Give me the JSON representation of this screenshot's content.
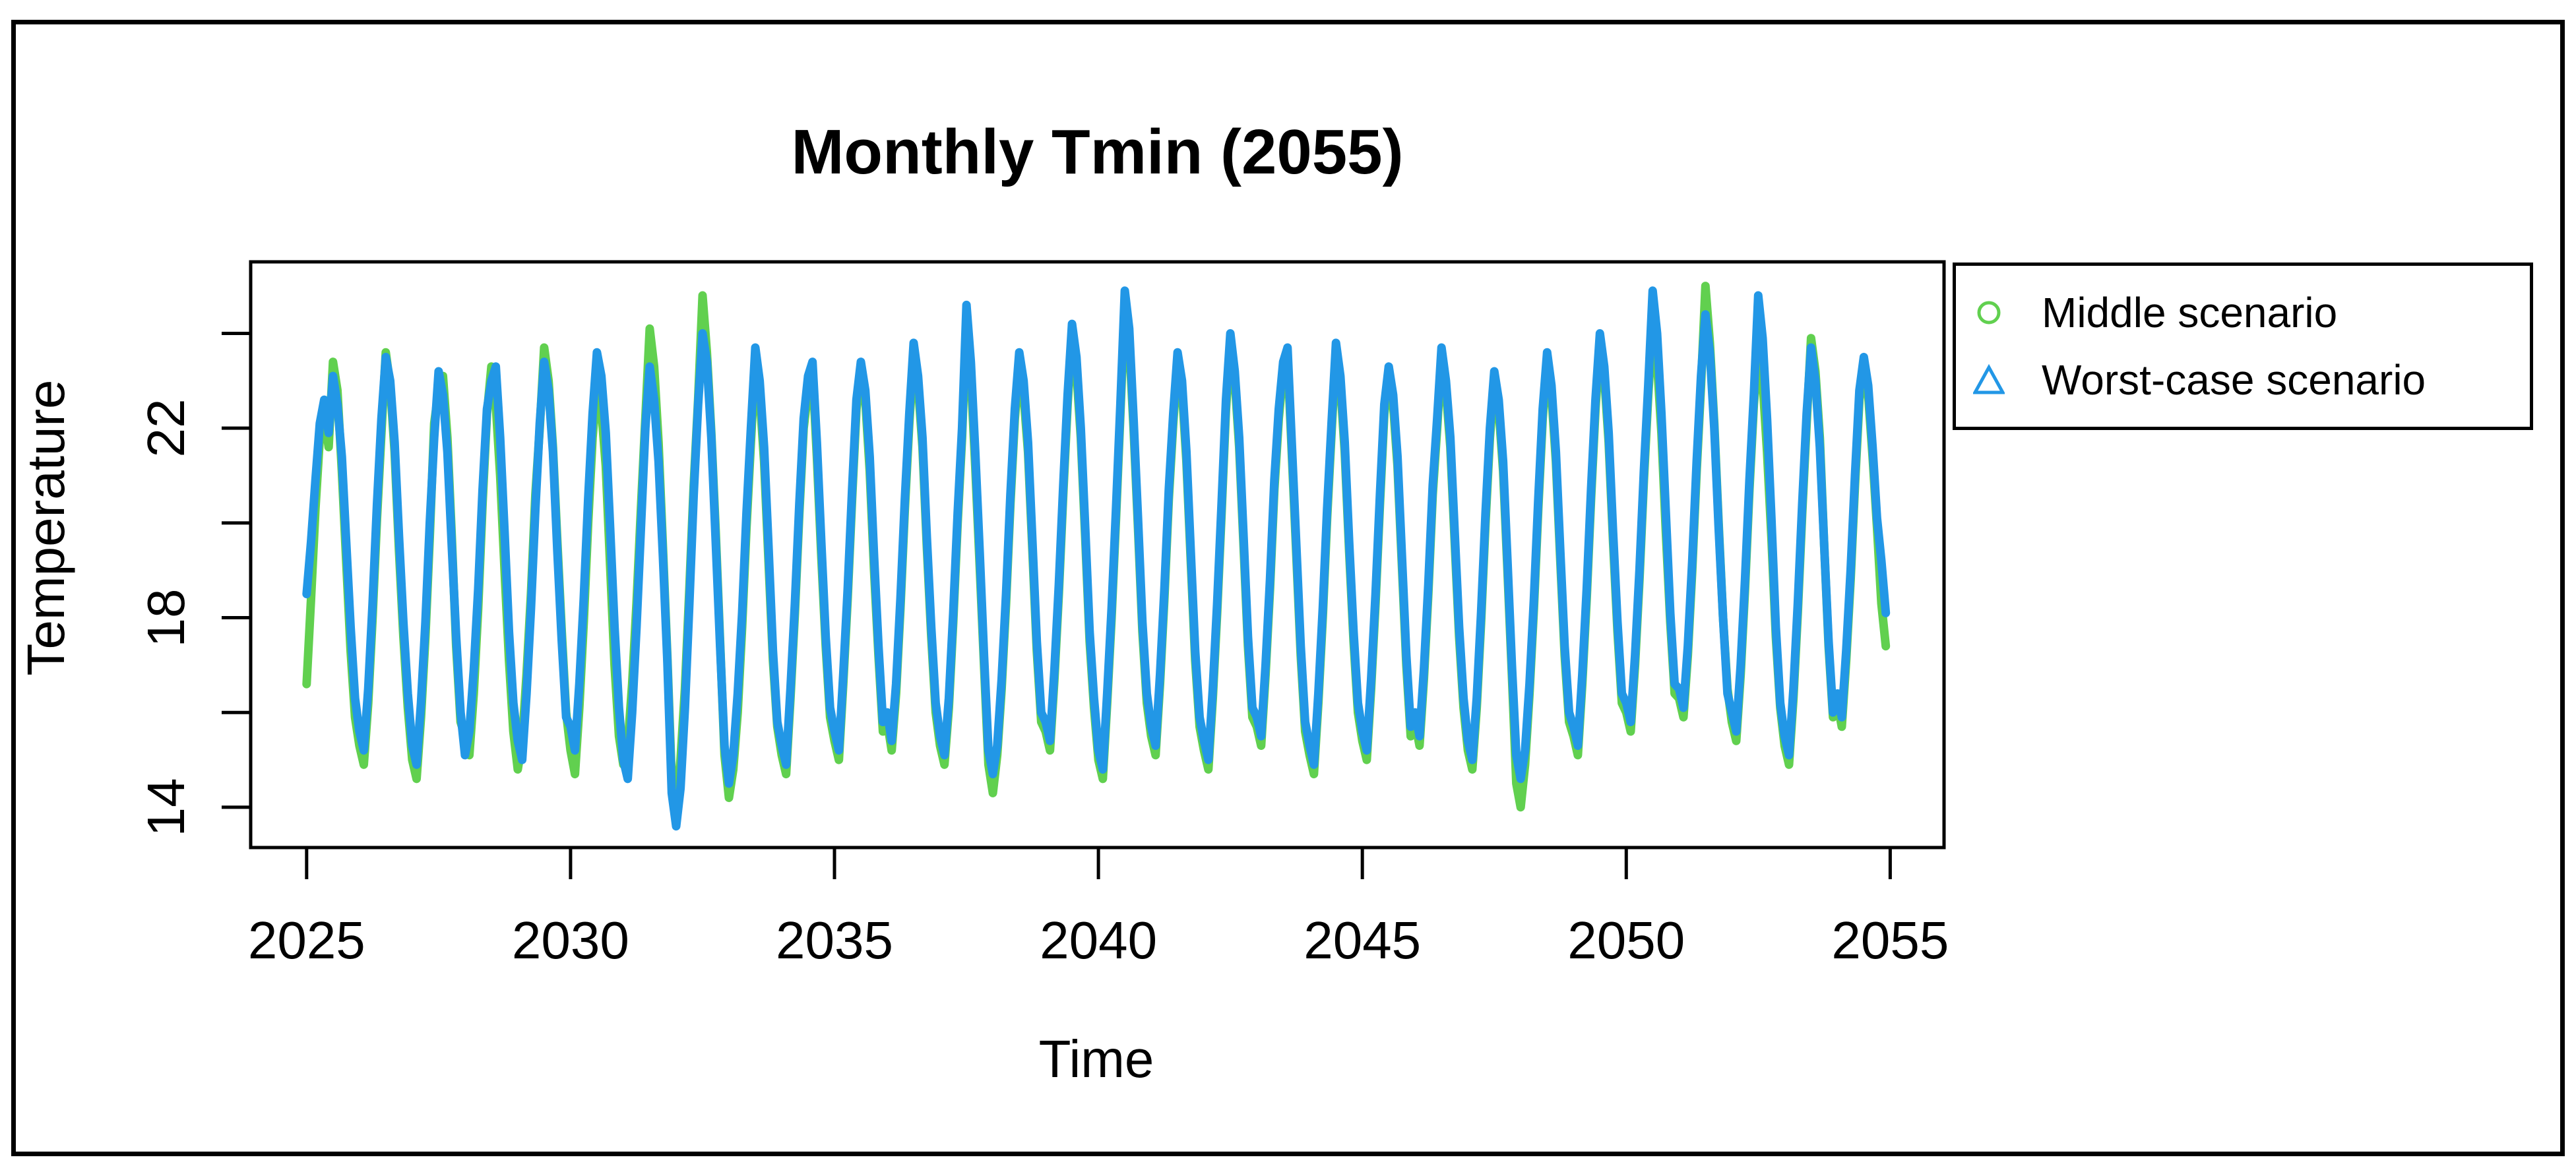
{
  "figure": {
    "background": "#ffffff",
    "border_color": "#000000",
    "axis_color": "#000000",
    "text_color": "#000000"
  },
  "chart_data": {
    "type": "line",
    "title": "Monthly Tmin (2055)",
    "xlabel": "Time",
    "ylabel": "Temperature",
    "grid": false,
    "legend_position": "outside-top-right",
    "x_start": 2025,
    "x_step": 0.08333333,
    "x_range": [
      2023.94,
      2056.02
    ],
    "y_range": [
      13.15,
      25.51
    ],
    "x_ticks": [
      2025,
      2030,
      2035,
      2040,
      2045,
      2050,
      2055
    ],
    "y_ticks": {
      "marks": [
        24,
        22,
        20,
        18,
        16,
        14
      ],
      "labeled": [
        22,
        18,
        14
      ]
    },
    "series": [
      {
        "name": "Middle scenario",
        "color": "#61D04F",
        "marker": "circle",
        "line_width": 13,
        "values": [
          16.6,
          18.4,
          20.3,
          21.8,
          22.3,
          21.6,
          23.4,
          22.8,
          21.1,
          19.2,
          17.3,
          15.9,
          15.3,
          14.9,
          16.2,
          18.0,
          20.1,
          21.9,
          23.6,
          22.9,
          21.5,
          19.4,
          17.6,
          16.1,
          15.0,
          14.6,
          15.9,
          17.6,
          19.7,
          22.1,
          22.8,
          23.1,
          21.8,
          19.7,
          17.4,
          15.8,
          15.5,
          15.1,
          16.4,
          18.2,
          20.4,
          22.3,
          23.3,
          22.5,
          21.0,
          19.0,
          17.1,
          15.6,
          14.8,
          15.4,
          16.8,
          18.5,
          20.6,
          22.0,
          23.7,
          23.0,
          21.6,
          19.6,
          17.7,
          16.0,
          15.2,
          14.7,
          16.1,
          17.9,
          20.0,
          21.8,
          22.9,
          22.4,
          21.2,
          19.1,
          17.0,
          15.5,
          14.9,
          15.3,
          16.6,
          18.3,
          20.3,
          22.2,
          24.1,
          23.3,
          21.7,
          19.5,
          17.2,
          14.6,
          14.0,
          15.0,
          16.5,
          18.6,
          20.8,
          22.6,
          24.8,
          23.6,
          21.9,
          19.8,
          17.5,
          15.1,
          14.2,
          14.8,
          16.0,
          17.8,
          19.9,
          21.7,
          23.4,
          22.7,
          21.3,
          19.2,
          17.1,
          15.7,
          15.1,
          14.7,
          16.3,
          18.1,
          20.2,
          22.0,
          22.8,
          23.2,
          21.4,
          19.3,
          17.4,
          15.9,
          15.4,
          15.0,
          16.6,
          18.4,
          20.5,
          22.4,
          23.2,
          22.6,
          21.1,
          19.0,
          17.2,
          15.6,
          15.8,
          15.2,
          16.4,
          18.2,
          20.3,
          22.1,
          23.5,
          22.9,
          21.6,
          19.5,
          17.6,
          16.0,
          15.3,
          14.9,
          16.1,
          17.9,
          20.0,
          21.8,
          24.3,
          23.1,
          21.2,
          19.1,
          17.0,
          14.9,
          14.3,
          15.1,
          16.5,
          18.3,
          20.4,
          22.2,
          23.3,
          22.7,
          21.5,
          19.4,
          17.3,
          15.8,
          15.6,
          15.2,
          16.7,
          18.5,
          20.6,
          22.5,
          24.0,
          23.2,
          21.8,
          19.7,
          17.5,
          16.1,
          15.0,
          14.6,
          16.2,
          18.0,
          20.1,
          22.3,
          24.6,
          23.8,
          22.0,
          19.9,
          17.7,
          16.2,
          15.5,
          15.1,
          16.6,
          18.4,
          20.5,
          22.1,
          23.4,
          22.8,
          21.3,
          19.2,
          17.1,
          15.7,
          15.2,
          14.8,
          16.3,
          18.1,
          20.2,
          22.4,
          23.8,
          23.0,
          21.6,
          19.5,
          17.4,
          15.9,
          15.7,
          15.3,
          16.8,
          18.6,
          20.7,
          22.2,
          23.2,
          23.5,
          21.4,
          19.3,
          17.2,
          15.6,
          15.1,
          14.7,
          16.2,
          18.0,
          20.1,
          21.9,
          23.6,
          22.9,
          21.5,
          19.4,
          17.5,
          16.0,
          15.4,
          15.0,
          16.5,
          18.3,
          20.4,
          22.3,
          23.1,
          22.5,
          21.2,
          19.1,
          17.0,
          15.5,
          15.8,
          15.3,
          16.7,
          18.5,
          20.6,
          22.0,
          23.5,
          22.8,
          21.6,
          19.6,
          17.6,
          16.1,
          15.2,
          14.8,
          16.1,
          17.9,
          20.0,
          21.8,
          23.0,
          22.4,
          21.1,
          19.0,
          16.8,
          14.5,
          14.0,
          14.9,
          16.4,
          18.2,
          20.3,
          22.2,
          23.4,
          22.7,
          21.3,
          19.2,
          17.2,
          15.8,
          15.5,
          15.1,
          16.6,
          18.4,
          20.5,
          22.4,
          23.8,
          23.1,
          21.7,
          19.6,
          17.7,
          16.2,
          16.0,
          15.6,
          17.0,
          18.8,
          20.9,
          22.7,
          24.2,
          23.4,
          21.9,
          19.8,
          17.9,
          16.4,
          16.3,
          15.9,
          17.2,
          19.0,
          21.1,
          22.9,
          25.0,
          23.8,
          22.1,
          20.0,
          18.0,
          16.5,
          15.8,
          15.4,
          16.8,
          18.6,
          20.7,
          22.5,
          23.6,
          23.0,
          21.5,
          19.7,
          17.6,
          16.1,
          15.3,
          14.9,
          16.3,
          18.1,
          20.2,
          22.1,
          23.9,
          23.2,
          21.8,
          19.5,
          17.4,
          15.9,
          16.2,
          15.7,
          17.1,
          18.8,
          20.8,
          22.6,
          23.3,
          22.7,
          21.4,
          19.9,
          18.3,
          17.4
        ]
      },
      {
        "name": "Worst-case scenario",
        "color": "#2297E6",
        "marker": "triangle",
        "line_width": 13,
        "values": [
          18.5,
          19.6,
          20.9,
          22.1,
          22.6,
          21.9,
          23.1,
          22.5,
          21.4,
          19.6,
          17.8,
          16.3,
          15.6,
          15.2,
          16.5,
          18.3,
          20.4,
          22.2,
          23.5,
          23.0,
          21.7,
          19.7,
          17.9,
          16.4,
          15.3,
          14.9,
          16.2,
          17.9,
          20.0,
          21.8,
          23.2,
          22.7,
          21.5,
          19.5,
          17.6,
          16.0,
          15.1,
          15.6,
          16.9,
          18.6,
          20.7,
          22.4,
          23.0,
          23.3,
          21.8,
          19.8,
          17.7,
          16.2,
          15.4,
          15.0,
          16.4,
          18.2,
          20.3,
          22.1,
          23.4,
          22.8,
          21.5,
          19.4,
          17.5,
          15.9,
          15.7,
          15.2,
          16.6,
          18.4,
          20.5,
          22.3,
          23.6,
          23.1,
          21.9,
          19.9,
          17.8,
          16.1,
          15.0,
          14.6,
          16.0,
          17.8,
          19.9,
          22.0,
          23.3,
          22.6,
          21.3,
          19.3,
          17.1,
          14.3,
          13.6,
          14.4,
          16.1,
          18.3,
          20.6,
          22.5,
          24.0,
          23.4,
          21.8,
          19.6,
          17.4,
          15.3,
          14.5,
          15.1,
          16.4,
          18.1,
          20.2,
          22.0,
          23.7,
          23.0,
          21.6,
          19.5,
          17.3,
          15.8,
          15.3,
          14.9,
          16.5,
          18.3,
          20.4,
          22.2,
          23.1,
          23.4,
          21.7,
          19.6,
          17.6,
          16.1,
          15.6,
          15.2,
          16.8,
          18.6,
          20.7,
          22.6,
          23.4,
          22.8,
          21.4,
          19.3,
          17.4,
          15.8,
          16.0,
          15.4,
          16.6,
          18.4,
          20.5,
          22.3,
          23.8,
          23.1,
          21.8,
          19.7,
          17.8,
          16.2,
          15.5,
          15.1,
          16.3,
          18.1,
          20.2,
          22.0,
          24.6,
          23.4,
          21.5,
          19.4,
          17.2,
          15.2,
          14.7,
          15.3,
          16.7,
          18.5,
          20.6,
          22.4,
          23.6,
          23.0,
          21.7,
          19.6,
          17.5,
          16.0,
          15.8,
          15.4,
          16.9,
          18.7,
          20.8,
          22.7,
          24.2,
          23.5,
          22.0,
          19.9,
          17.7,
          16.3,
          15.2,
          14.8,
          16.4,
          18.2,
          20.3,
          22.5,
          24.9,
          24.1,
          22.2,
          20.1,
          17.9,
          16.4,
          15.7,
          15.3,
          16.8,
          18.6,
          20.7,
          22.3,
          23.6,
          23.0,
          21.5,
          19.4,
          17.3,
          15.9,
          15.4,
          15.0,
          16.5,
          18.3,
          20.4,
          22.6,
          24.0,
          23.2,
          21.8,
          19.7,
          17.6,
          16.1,
          15.9,
          15.5,
          17.0,
          18.8,
          20.9,
          22.4,
          23.4,
          23.7,
          21.6,
          19.5,
          17.4,
          15.8,
          15.3,
          14.9,
          16.4,
          18.2,
          20.3,
          22.1,
          23.8,
          23.1,
          21.7,
          19.6,
          17.7,
          16.2,
          15.6,
          15.2,
          16.7,
          18.5,
          20.6,
          22.5,
          23.3,
          22.7,
          21.4,
          19.3,
          17.2,
          15.7,
          16.0,
          15.5,
          16.9,
          18.7,
          20.8,
          22.2,
          23.7,
          23.0,
          21.8,
          19.8,
          17.8,
          16.3,
          15.4,
          15.0,
          16.3,
          18.1,
          20.2,
          22.0,
          23.2,
          22.6,
          21.3,
          19.2,
          17.0,
          15.1,
          14.6,
          15.2,
          16.6,
          18.4,
          20.5,
          22.4,
          23.6,
          22.9,
          21.5,
          19.4,
          17.4,
          16.0,
          15.7,
          15.3,
          16.8,
          18.6,
          20.7,
          22.6,
          24.0,
          23.3,
          21.9,
          19.8,
          17.9,
          16.4,
          16.2,
          15.8,
          17.2,
          19.0,
          21.1,
          22.9,
          24.9,
          24.0,
          22.3,
          20.2,
          18.1,
          16.6,
          16.5,
          16.1,
          17.4,
          19.2,
          21.3,
          23.1,
          24.4,
          23.6,
          22.0,
          19.9,
          18.0,
          16.4,
          16.0,
          15.6,
          17.0,
          18.8,
          20.9,
          22.7,
          24.8,
          23.9,
          22.2,
          20.1,
          17.8,
          16.2,
          15.5,
          15.1,
          16.5,
          18.3,
          20.4,
          22.3,
          23.7,
          23.0,
          21.6,
          19.5,
          17.5,
          16.0,
          16.4,
          15.9,
          17.3,
          19.0,
          21.0,
          22.8,
          23.5,
          22.9,
          21.6,
          20.1,
          19.2,
          18.1
        ]
      }
    ]
  }
}
